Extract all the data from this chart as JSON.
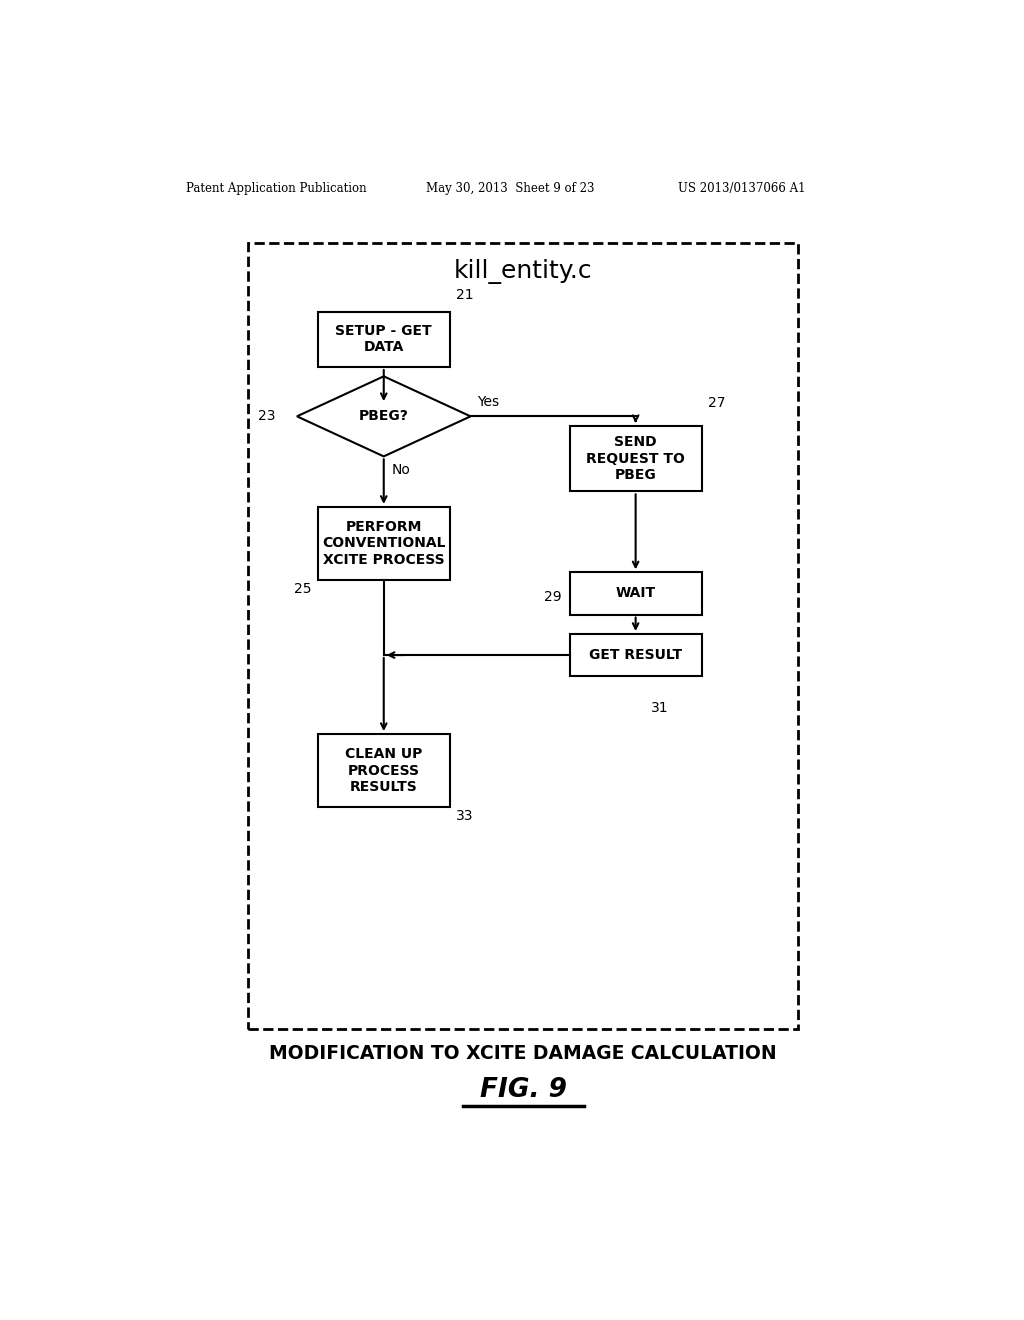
{
  "bg_color": "#ffffff",
  "header_left": "Patent Application Publication",
  "header_mid": "May 30, 2013  Sheet 9 of 23",
  "header_right": "US 2013/0137066 A1",
  "title_box": "kill_entity.c",
  "box1_text": "SETUP - GET\nDATA",
  "box1_label": "21",
  "diamond_text": "PBEG?",
  "diamond_label": "23",
  "yes_label": "Yes",
  "no_label": "No",
  "box2_text": "PERFORM\nCONVENTIONAL\nXCITE PROCESS",
  "box2_label": "25",
  "box3_text": "SEND\nREQUEST TO\nPBEG",
  "box3_label": "27",
  "box4_text": "WAIT",
  "box4_label": "29",
  "box5_text": "GET RESULT",
  "box5_label": "31",
  "box6_text": "CLEAN UP\nPROCESS\nRESULTS",
  "box6_label": "33",
  "caption": "MODIFICATION TO XCITE DAMAGE CALCULATION",
  "figure_label": "FIG. 9"
}
